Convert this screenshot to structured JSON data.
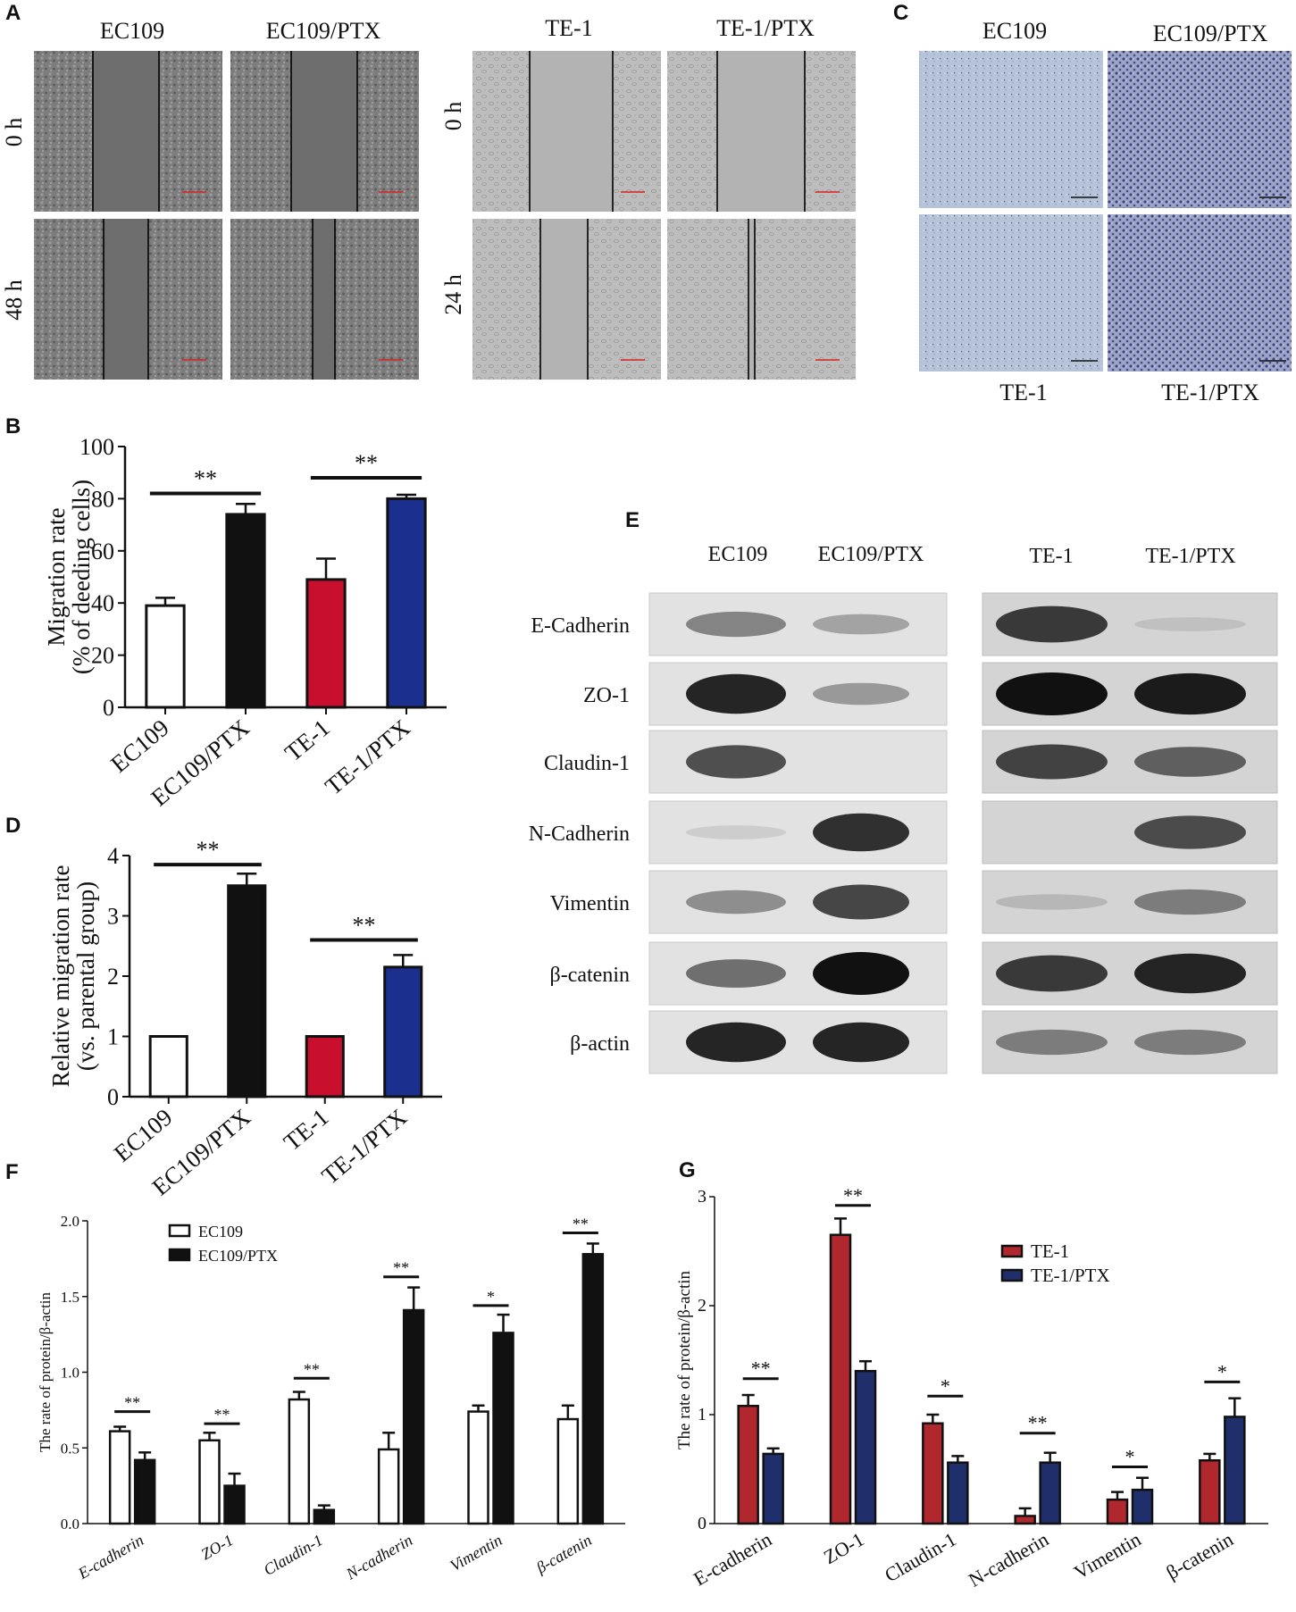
{
  "panels": {
    "A": "A",
    "B": "B",
    "C": "C",
    "D": "D",
    "E": "E",
    "F": "F",
    "G": "G"
  },
  "panel_A": {
    "cols_left": [
      "EC109",
      "EC109/PTX"
    ],
    "cols_right": [
      "TE-1",
      "TE-1/PTX"
    ],
    "rows_left": [
      "0 h",
      "48 h"
    ],
    "rows_right": [
      "0 h",
      "24 h"
    ]
  },
  "panel_C": {
    "top_labels": [
      "EC109",
      "EC109/PTX"
    ],
    "bottom_labels": [
      "TE-1",
      "TE-1/PTX"
    ]
  },
  "panel_E": {
    "columns_left": [
      "EC109",
      "EC109/PTX"
    ],
    "columns_right": [
      "TE-1",
      "TE-1/PTX"
    ],
    "proteins": [
      "E-Cadherin",
      "ZO-1",
      "Claudin-1",
      "N-Cadherin",
      "Vimentin",
      "β-catenin",
      "β-actin"
    ],
    "band_intensity_left": [
      [
        0.45,
        0.3
      ],
      [
        0.9,
        0.35
      ],
      [
        0.7,
        0.0
      ],
      [
        0.1,
        0.85
      ],
      [
        0.4,
        0.75
      ],
      [
        0.55,
        1.0
      ],
      [
        0.9,
        0.9
      ]
    ],
    "band_intensity_right": [
      [
        0.8,
        0.1
      ],
      [
        1.0,
        0.95
      ],
      [
        0.75,
        0.6
      ],
      [
        0.0,
        0.7
      ],
      [
        0.15,
        0.45
      ],
      [
        0.8,
        0.9
      ],
      [
        0.45,
        0.45
      ]
    ]
  },
  "colors": {
    "red": "#c8102e",
    "blue": "#1b2f8f",
    "black": "#111111",
    "white": "#ffffff",
    "dark_red": "#b0272d",
    "navy": "#1f2f6b"
  },
  "chart_data": [
    {
      "id": "B",
      "type": "bar",
      "categories": [
        "EC109",
        "EC109/PTX",
        "TE-1",
        "TE-1/PTX"
      ],
      "values": [
        39,
        74,
        49,
        80
      ],
      "errors": [
        3,
        4,
        8,
        1.5
      ],
      "colors": [
        "#ffffff",
        "#111111",
        "#c8102e",
        "#1b2f8f"
      ],
      "ylabel": "Migration rate",
      "ylabel2": "(% of deeding cells)",
      "ylim": [
        0,
        100
      ],
      "yticks": [
        0,
        20,
        40,
        60,
        80,
        100
      ],
      "significance": [
        {
          "from": 0,
          "to": 1,
          "label": "**",
          "y": 82
        },
        {
          "from": 2,
          "to": 3,
          "label": "**",
          "y": 88
        }
      ]
    },
    {
      "id": "D",
      "type": "bar",
      "categories": [
        "EC109",
        "EC109/PTX",
        "TE-1",
        "TE-1/PTX"
      ],
      "values": [
        1,
        3.5,
        1,
        2.15
      ],
      "errors": [
        0,
        0.2,
        0,
        0.2
      ],
      "colors": [
        "#ffffff",
        "#111111",
        "#c8102e",
        "#1b2f8f"
      ],
      "ylabel": "Relative migration rate",
      "ylabel2": "(vs. parental group)",
      "ylim": [
        0,
        4
      ],
      "yticks": [
        0,
        1,
        2,
        3,
        4
      ],
      "significance": [
        {
          "from": 0,
          "to": 1,
          "label": "**",
          "y": 3.85
        },
        {
          "from": 2,
          "to": 3,
          "label": "**",
          "y": 2.6
        }
      ]
    },
    {
      "id": "F",
      "type": "bar",
      "categories": [
        "E-cadherin",
        "ZO-1",
        "Claudin-1",
        "N-cadherin",
        "Vimentin",
        "β-catenin"
      ],
      "series": [
        {
          "name": "EC109",
          "values": [
            0.61,
            0.55,
            0.82,
            0.49,
            0.74,
            0.69
          ],
          "errors": [
            0.03,
            0.05,
            0.05,
            0.11,
            0.04,
            0.09
          ],
          "fill": "#ffffff"
        },
        {
          "name": "EC109/PTX",
          "values": [
            0.42,
            0.25,
            0.09,
            1.41,
            1.26,
            1.78
          ],
          "errors": [
            0.05,
            0.08,
            0.03,
            0.15,
            0.12,
            0.07
          ],
          "fill": "#111111"
        }
      ],
      "ylabel": "The rate of protein/β-actin",
      "ylim": [
        0,
        2.0
      ],
      "yticks": [
        "0.0",
        "0.5",
        "1.0",
        "1.5",
        "2.0"
      ],
      "significance": [
        {
          "i": 0,
          "label": "**",
          "y": 0.74
        },
        {
          "i": 1,
          "label": "**",
          "y": 0.66
        },
        {
          "i": 2,
          "label": "**",
          "y": 0.96
        },
        {
          "i": 3,
          "label": "**",
          "y": 1.63
        },
        {
          "i": 4,
          "label": "*",
          "y": 1.44
        },
        {
          "i": 5,
          "label": "**",
          "y": 1.92
        }
      ]
    },
    {
      "id": "G",
      "type": "bar",
      "categories": [
        "E-cadherin",
        "ZO-1",
        "Claudin-1",
        "N-cadherin",
        "Vimentin",
        "β-catenin"
      ],
      "series": [
        {
          "name": "TE-1",
          "values": [
            1.08,
            2.65,
            0.92,
            0.07,
            0.22,
            0.58
          ],
          "errors": [
            0.1,
            0.15,
            0.08,
            0.07,
            0.07,
            0.06
          ],
          "fill": "#b0272d"
        },
        {
          "name": "TE-1/PTX",
          "values": [
            0.64,
            1.4,
            0.56,
            0.56,
            0.31,
            0.98
          ],
          "errors": [
            0.05,
            0.09,
            0.06,
            0.09,
            0.11,
            0.17
          ],
          "fill": "#1f2f6b"
        }
      ],
      "ylabel": "The rate of protein/β-actin",
      "ylim": [
        0,
        3
      ],
      "yticks": [
        "0",
        "1",
        "2",
        "3"
      ],
      "significance": [
        {
          "i": 0,
          "label": "**",
          "y": 1.33
        },
        {
          "i": 1,
          "label": "**",
          "y": 2.92
        },
        {
          "i": 2,
          "label": "*",
          "y": 1.17
        },
        {
          "i": 3,
          "label": "**",
          "y": 0.83
        },
        {
          "i": 4,
          "label": "*",
          "y": 0.52
        },
        {
          "i": 5,
          "label": "*",
          "y": 1.3
        }
      ]
    }
  ]
}
